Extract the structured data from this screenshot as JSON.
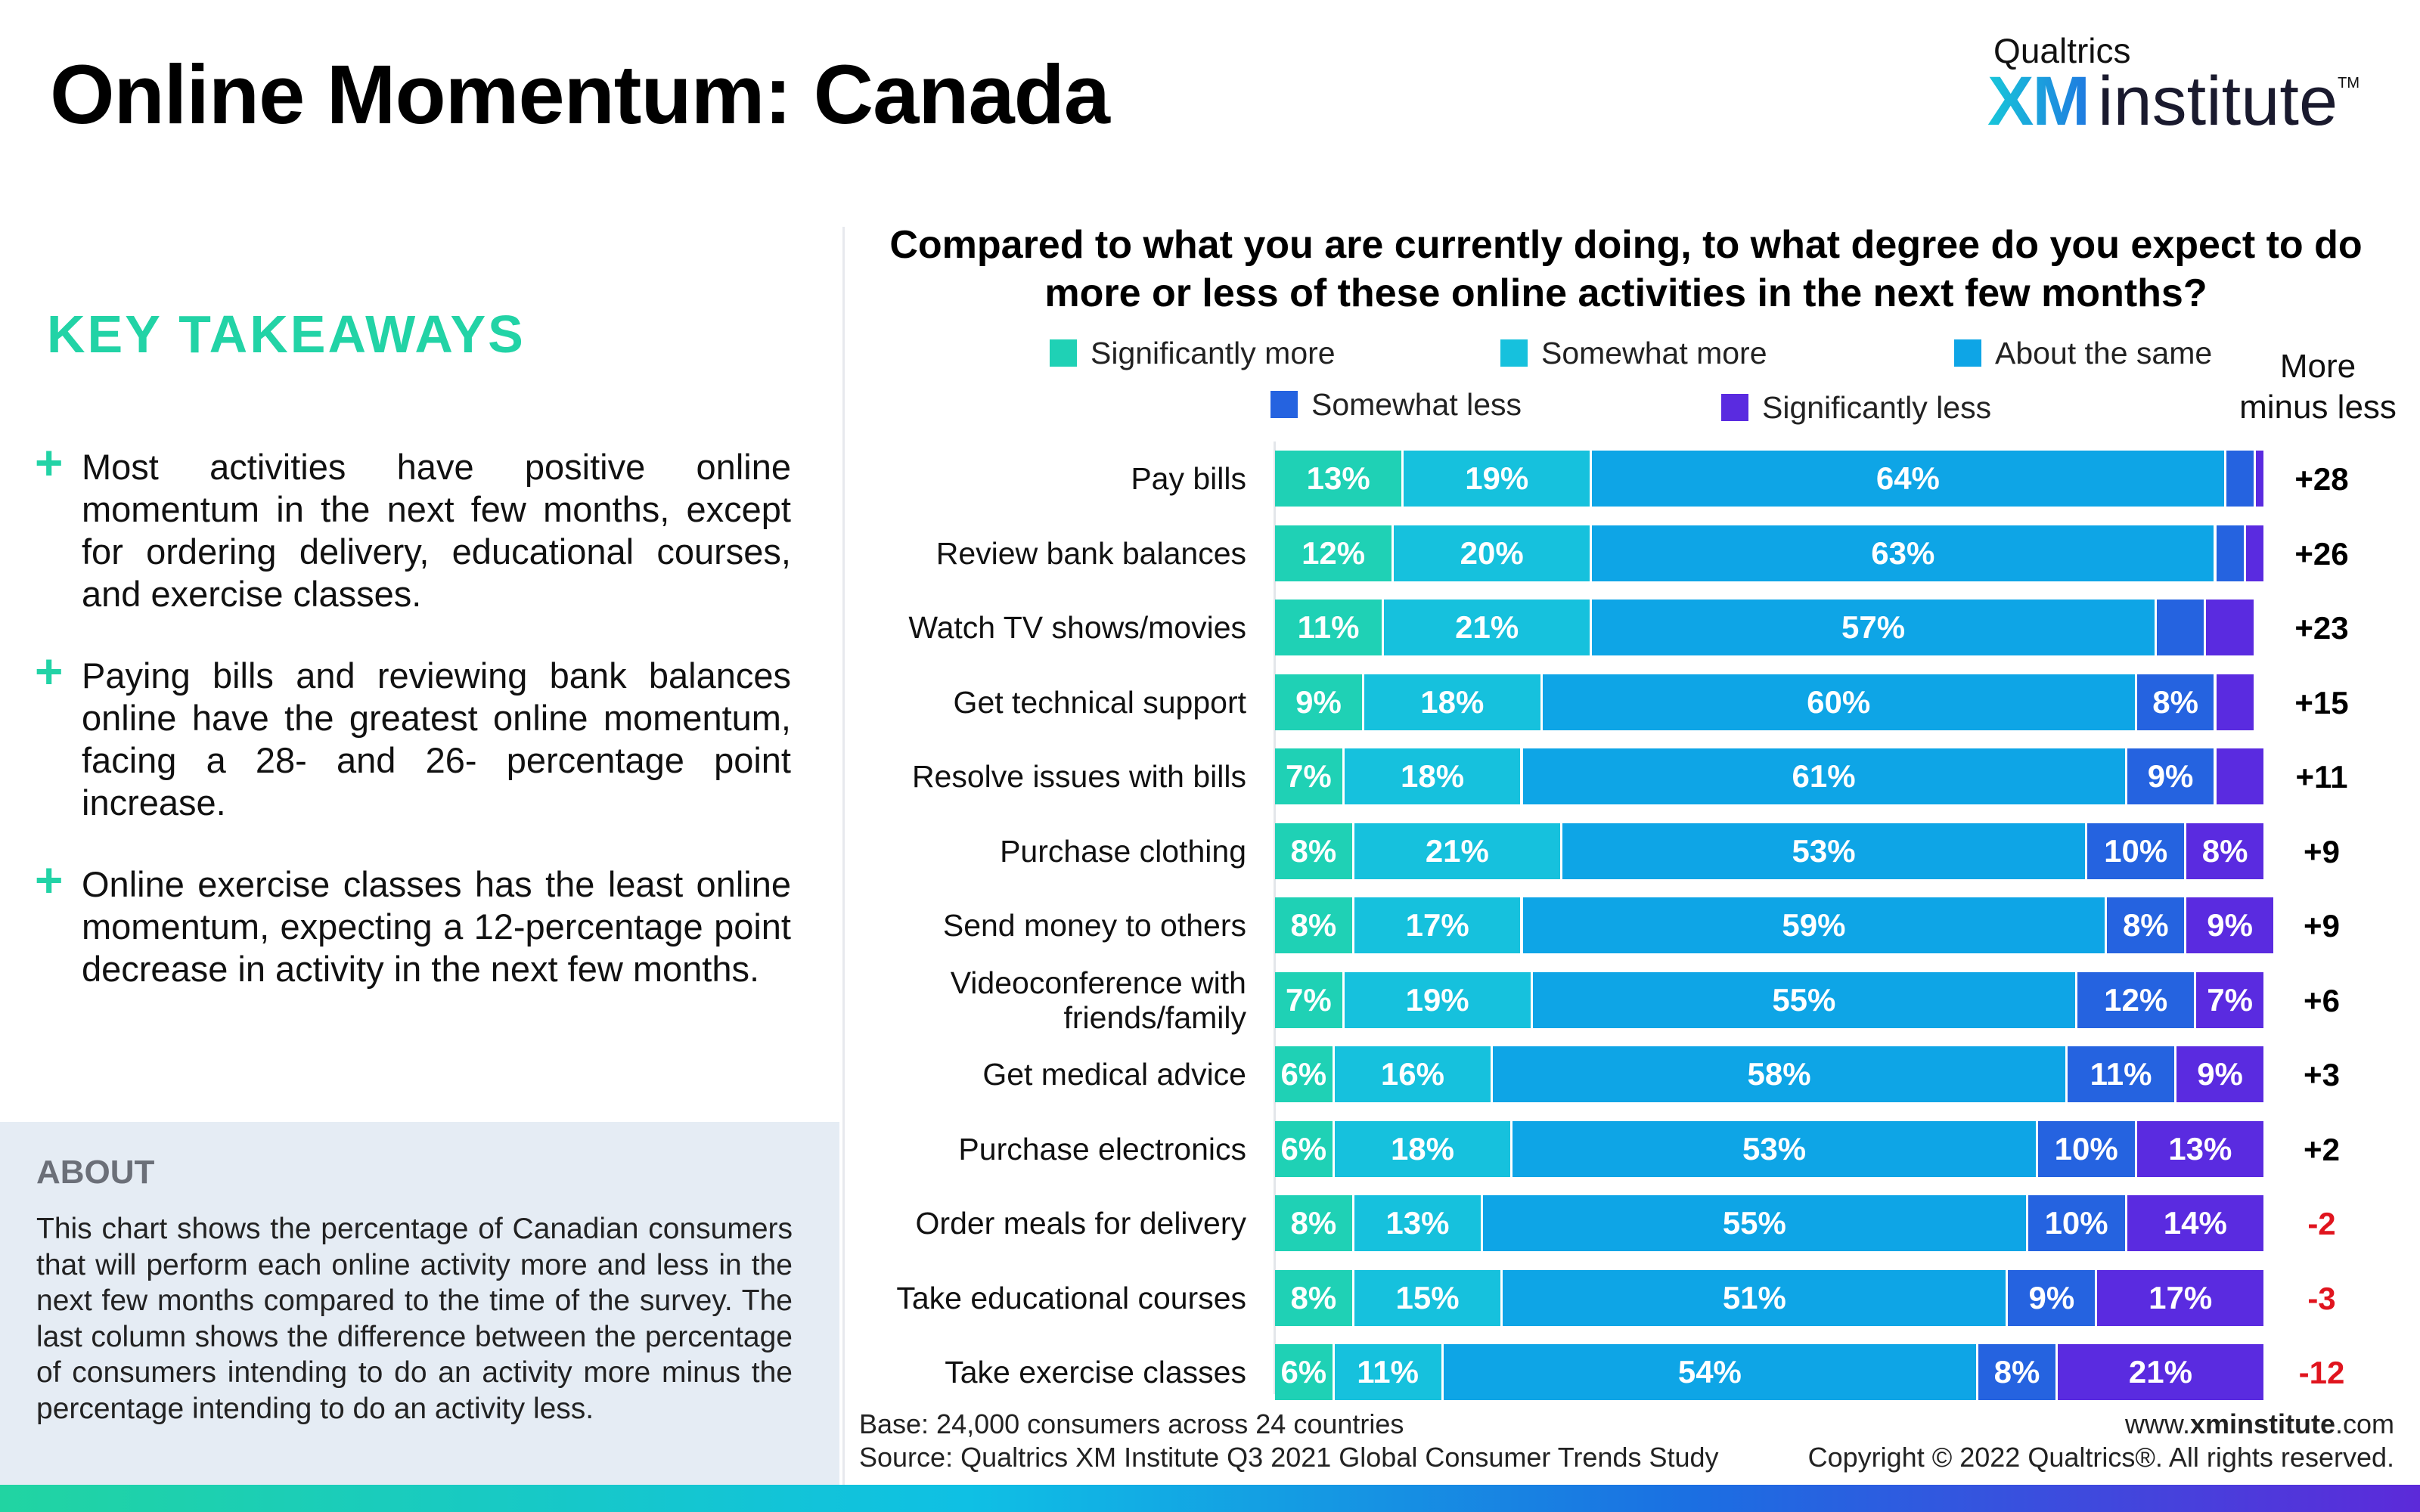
{
  "header": {
    "title": "Online Momentum: Canada",
    "brand_qualtrics": "Qualtrics",
    "brand_xm": "XM",
    "brand_institute": "institute",
    "brand_tm": "TM"
  },
  "takeaways": {
    "heading": "KEY TAKEAWAYS",
    "plus_symbol": "+",
    "items": [
      "Most activities have positive online momentum in the next few months, except for ordering delivery, educational courses, and exercise classes.",
      "Paying bills and reviewing bank balances online have the greatest online momentum, facing a 28- and 26- percentage point increase.",
      "Online exercise classes has the least online momentum, expecting a 12-percentage point decrease in activity in the next few months."
    ]
  },
  "about": {
    "heading": "ABOUT",
    "text": "This chart shows the percentage of Canadian consumers that will perform each online activity more and less in the next few months compared to the time of the survey. The last column shows the difference between the percentage of consumers intending to do an activity more minus the percentage intending to do an activity less."
  },
  "chart_data": {
    "type": "bar",
    "orientation": "horizontal",
    "stacked": true,
    "title": "Compared to what you are currently doing, to what degree do you expect to do more or less of these online activities in the next few months?",
    "diff_column_label": "More minus less",
    "xlim": [
      0,
      100
    ],
    "legend_position": "top",
    "categories": [
      "Pay bills",
      "Review bank balances",
      "Watch TV shows/movies",
      "Get technical support",
      "Resolve issues with bills",
      "Purchase clothing",
      "Send money to others",
      "Videoconference with friends/family",
      "Get medical advice",
      "Purchase electronics",
      "Order meals for delivery",
      "Take educational courses",
      "Take exercise classes"
    ],
    "series": [
      {
        "name": "Significantly more",
        "color": "#1fd1b5",
        "values": [
          13,
          12,
          11,
          9,
          7,
          8,
          8,
          7,
          6,
          6,
          8,
          8,
          6
        ]
      },
      {
        "name": "Somewhat more",
        "color": "#16c1dd",
        "values": [
          19,
          20,
          21,
          18,
          18,
          21,
          17,
          19,
          16,
          18,
          13,
          15,
          11
        ]
      },
      {
        "name": "About the same",
        "color": "#0ea5e6",
        "values": [
          64,
          63,
          57,
          60,
          61,
          53,
          59,
          55,
          58,
          53,
          55,
          51,
          54
        ]
      },
      {
        "name": "Somewhat less",
        "color": "#2563e0",
        "values": [
          3,
          3,
          5,
          8,
          9,
          10,
          8,
          12,
          11,
          10,
          10,
          9,
          8
        ]
      },
      {
        "name": "Significantly less",
        "color": "#5a2be0",
        "values": [
          1,
          2,
          5,
          4,
          5,
          8,
          9,
          7,
          9,
          13,
          14,
          17,
          21
        ]
      }
    ],
    "value_labels": [
      [
        "13%",
        "19%",
        "64%",
        "",
        ""
      ],
      [
        "12%",
        "20%",
        "63%",
        "",
        ""
      ],
      [
        "11%",
        "21%",
        "57%",
        "",
        ""
      ],
      [
        "9%",
        "18%",
        "60%",
        "8%",
        ""
      ],
      [
        "7%",
        "18%",
        "61%",
        "9%",
        ""
      ],
      [
        "8%",
        "21%",
        "53%",
        "10%",
        "8%"
      ],
      [
        "8%",
        "17%",
        "59%",
        "8%",
        "9%"
      ],
      [
        "7%",
        "19%",
        "55%",
        "12%",
        "7%"
      ],
      [
        "6%",
        "16%",
        "58%",
        "11%",
        "9%"
      ],
      [
        "6%",
        "18%",
        "53%",
        "10%",
        "13%"
      ],
      [
        "8%",
        "13%",
        "55%",
        "10%",
        "14%"
      ],
      [
        "8%",
        "15%",
        "51%",
        "9%",
        "17%"
      ],
      [
        "6%",
        "11%",
        "54%",
        "8%",
        "21%"
      ]
    ],
    "more_minus_less": [
      "+28",
      "+26",
      "+23",
      "+15",
      "+11",
      "+9",
      "+9",
      "+6",
      "+3",
      "+2",
      "-2",
      "-3",
      "-12"
    ],
    "positive_color": "#000000",
    "negative_color": "#e0141e"
  },
  "legend": {
    "items": [
      {
        "label": "Significantly more",
        "color": "#1fd1b5"
      },
      {
        "label": "Somewhat more",
        "color": "#16c1dd"
      },
      {
        "label": "About the same",
        "color": "#0ea5e6"
      },
      {
        "label": "Somewhat less",
        "color": "#2563e0"
      },
      {
        "label": "Significantly less",
        "color": "#5a2be0"
      }
    ],
    "more_label_line1": "More",
    "more_label_line2": "minus less"
  },
  "footer": {
    "base": "Base: 24,000 consumers across 24 countries",
    "source": "Source: Qualtrics XM Institute Q3 2021 Global Consumer Trends Study",
    "url_prefix": "www.",
    "url_bold": "xminstitute",
    "url_suffix": ".com",
    "copyright": "Copyright © 2022 Qualtrics®. All rights reserved."
  }
}
